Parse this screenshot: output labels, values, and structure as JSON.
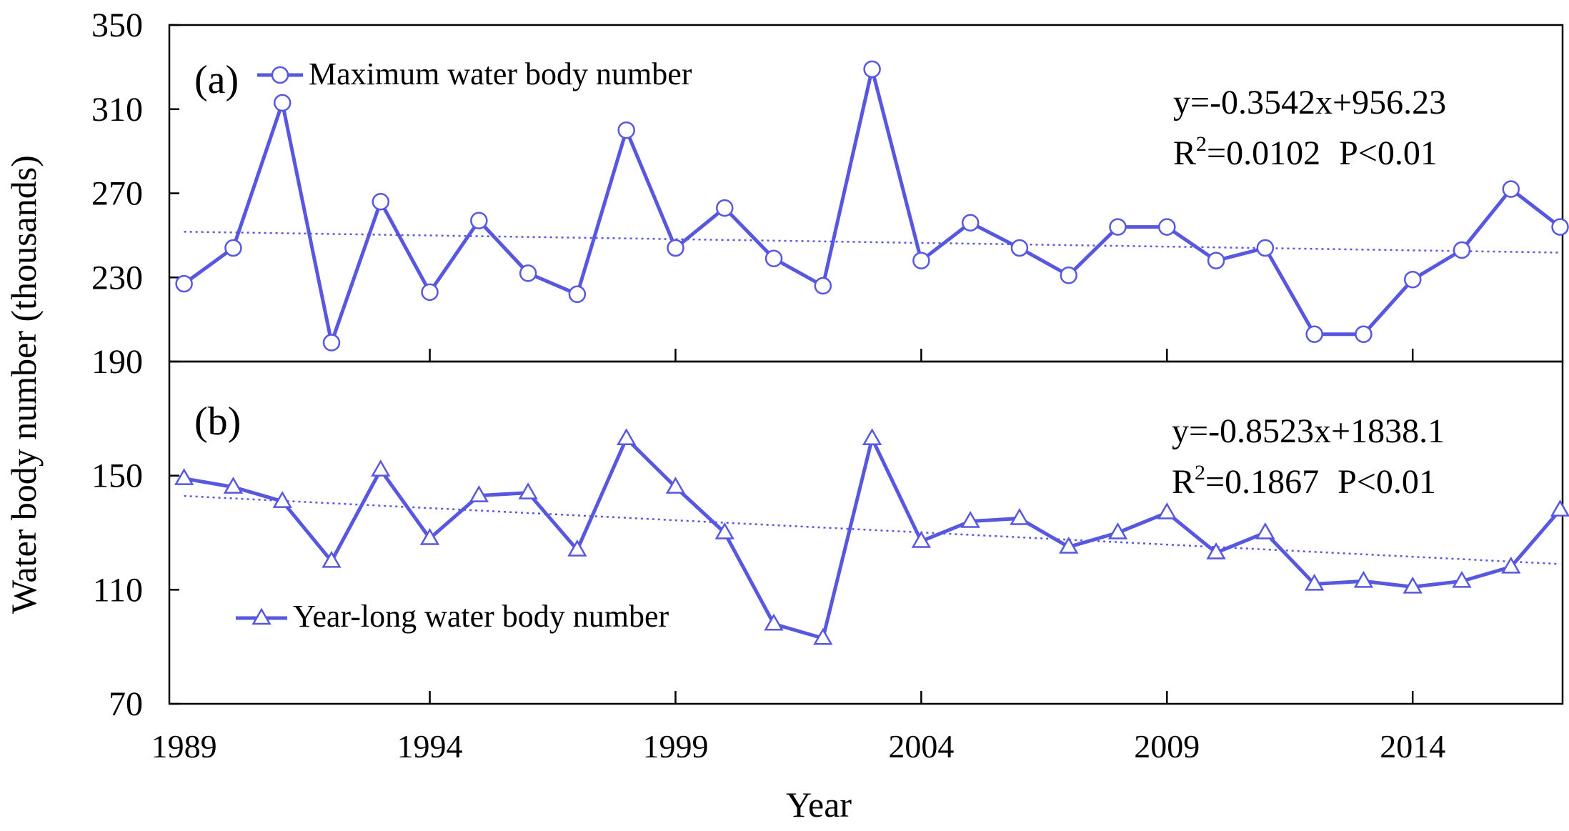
{
  "chart_data": [
    {
      "panel": "a",
      "type": "line",
      "panel_label": "(a)",
      "legend_label": "Maximum water body number",
      "marker": "circle",
      "color": "#5757e0",
      "ylim": [
        190,
        350
      ],
      "yticks": [
        "350",
        "310",
        "270",
        "230",
        "190"
      ],
      "equation": "y=-0.3542x+956.23",
      "stats": {
        "r": "R",
        "sup": "2",
        "r2": "=0.0102",
        "p": "P<0.01"
      },
      "trend": {
        "slope": -0.3542,
        "intercept": 956.23
      },
      "x": [
        1989,
        1990,
        1991,
        1992,
        1993,
        1994,
        1995,
        1996,
        1997,
        1998,
        1999,
        2000,
        2001,
        2002,
        2003,
        2004,
        2005,
        2006,
        2007,
        2008,
        2009,
        2010,
        2011,
        2012,
        2013,
        2014,
        2015,
        2016,
        2017
      ],
      "values": [
        227,
        244,
        313,
        199,
        266,
        223,
        257,
        232,
        222,
        300,
        244,
        263,
        239,
        226,
        329,
        238,
        256,
        244,
        231,
        254,
        254,
        238,
        244,
        203,
        203,
        229,
        243,
        272,
        254
      ]
    },
    {
      "panel": "b",
      "type": "line",
      "panel_label": "(b)",
      "legend_label": "Year-long water body number",
      "marker": "triangle",
      "color": "#5757e0",
      "ylim": [
        70,
        190
      ],
      "yticks": [
        "190",
        "150",
        "110",
        "70"
      ],
      "equation": "y=-0.8523x+1838.1",
      "stats": {
        "r": "R",
        "sup": "2",
        "r2": "=0.1867",
        "p": "P<0.01"
      },
      "trend": {
        "slope": -0.8523,
        "intercept": 1838.1
      },
      "x": [
        1989,
        1990,
        1991,
        1992,
        1993,
        1994,
        1995,
        1996,
        1997,
        1998,
        1999,
        2000,
        2001,
        2002,
        2003,
        2004,
        2005,
        2006,
        2007,
        2008,
        2009,
        2010,
        2011,
        2012,
        2013,
        2014,
        2015,
        2016,
        2017
      ],
      "values": [
        149,
        146,
        141,
        120,
        152,
        128,
        143,
        144,
        124,
        163,
        146,
        130,
        98,
        93,
        163,
        127,
        134,
        135,
        125,
        130,
        137,
        123,
        130,
        112,
        113,
        111,
        113,
        118,
        138
      ]
    }
  ],
  "axes": {
    "xlim": [
      1988.7,
      2017.05
    ],
    "xticks": [
      1989,
      1994,
      1999,
      2004,
      2009,
      2014
    ],
    "xtick_labels": [
      "1989",
      "1994",
      "1999",
      "2004",
      "2009",
      "2014"
    ],
    "xlabel": "Year",
    "ylabel": "Water body number (thousands)"
  }
}
